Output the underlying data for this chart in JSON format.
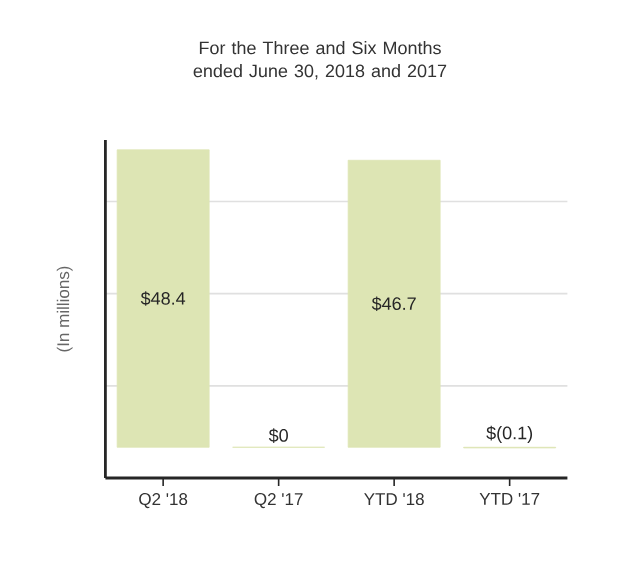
{
  "chart_data": {
    "type": "bar",
    "title": "For the Three and Six Months ended June 30, 2018 and 2017",
    "ylabel": "(In millions)",
    "categories": [
      "Q2 '18",
      "Q2 '17",
      "YTD '18",
      "YTD '17"
    ],
    "values": [
      48.4,
      0,
      46.7,
      -0.1
    ],
    "color": "#dde5b4",
    "value_labels": [
      "$48.4",
      "$0",
      "$46.7",
      "$(0.1)"
    ],
    "ylim": [
      -5,
      50
    ],
    "yticks": [
      {
        "value": 10,
        "label": null
      },
      {
        "value": 25,
        "label": null
      },
      {
        "value": 40,
        "label": null
      }
    ],
    "grid": "y",
    "tick_labels": "x"
  }
}
